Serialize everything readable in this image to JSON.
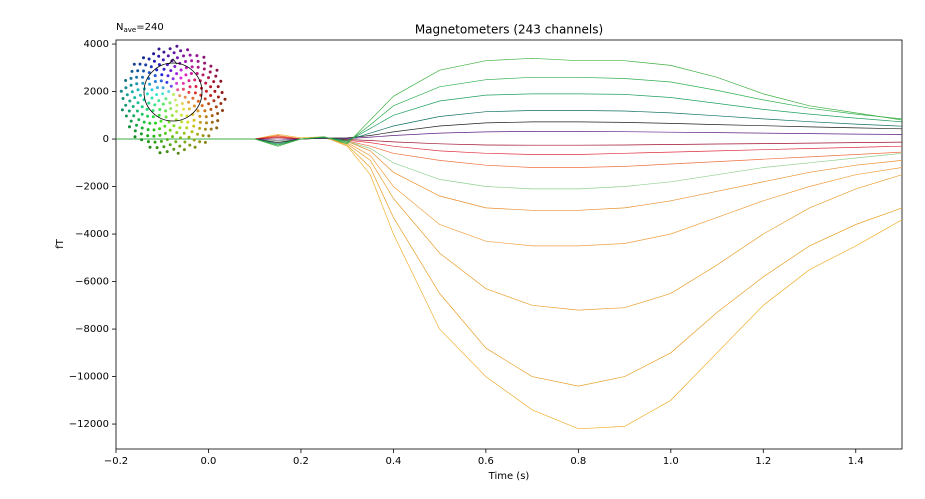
{
  "chart_data": {
    "type": "line",
    "title": "Magnetometers (243 channels)",
    "nave": {
      "symbol": "N",
      "subscript": "ave",
      "text": "=240"
    },
    "xlabel": "Time (s)",
    "ylabel": "fT",
    "xlim": [
      -0.2,
      1.5
    ],
    "ylim": [
      -13050,
      4170
    ],
    "xticks": [
      {
        "value": -0.2,
        "label": "−0.2"
      },
      {
        "value": 0,
        "label": "0.0"
      },
      0.2,
      0.4,
      0.6,
      0.8,
      {
        "value": 1,
        "label": "1.0"
      },
      1.2,
      1.4
    ],
    "yticks": [
      4000,
      2000,
      0,
      {
        "value": -2000,
        "label": "−2000"
      },
      {
        "value": -4000,
        "label": "−4000"
      },
      {
        "value": -6000,
        "label": "−6000"
      },
      {
        "value": -8000,
        "label": "−8000"
      },
      {
        "value": -10000,
        "label": "−10000"
      },
      {
        "value": -12000,
        "label": "−12000"
      }
    ],
    "x": [
      -0.2,
      -0.1,
      0,
      0.1,
      0.15,
      0.2,
      0.25,
      0.3,
      0.35,
      0.4,
      0.5,
      0.6,
      0.7,
      0.8,
      0.9,
      1.0,
      1.1,
      1.2,
      1.3,
      1.4,
      1.5
    ],
    "series": [
      {
        "color": "#f0b030",
        "values": [
          0,
          0,
          0,
          0,
          200,
          50,
          100,
          -300,
          -1500,
          -4000,
          -8000,
          -10000,
          -11400,
          -12200,
          -12100,
          -11000,
          -9000,
          -7000,
          -5500,
          -4500,
          -3400
        ]
      },
      {
        "color": "#e8a028",
        "values": [
          0,
          0,
          0,
          0,
          150,
          0,
          80,
          -250,
          -1200,
          -3300,
          -6500,
          -8800,
          -10000,
          -10400,
          -10000,
          -9000,
          -7300,
          -5800,
          -4500,
          -3600,
          -2900
        ]
      },
      {
        "color": "#e8a030",
        "values": [
          0,
          0,
          0,
          0,
          100,
          0,
          50,
          -200,
          -900,
          -2500,
          -4800,
          -6300,
          -7000,
          -7200,
          -7100,
          -6500,
          -5300,
          -4000,
          -2900,
          -2100,
          -1500
        ]
      },
      {
        "color": "#f0a040",
        "values": [
          0,
          0,
          0,
          0,
          100,
          0,
          50,
          -150,
          -700,
          -2000,
          -3600,
          -4300,
          -4500,
          -4500,
          -4400,
          -4000,
          -3300,
          -2600,
          -2000,
          -1500,
          -1200
        ]
      },
      {
        "color": "#e89030",
        "values": [
          0,
          0,
          0,
          0,
          100,
          0,
          50,
          -100,
          -500,
          -1400,
          -2400,
          -2900,
          -3000,
          -3000,
          -2900,
          -2600,
          -2200,
          -1800,
          -1400,
          -1100,
          -900
        ]
      },
      {
        "color": "#90d090",
        "values": [
          0,
          0,
          0,
          0,
          -100,
          0,
          50,
          -100,
          -400,
          -1000,
          -1700,
          -2000,
          -2100,
          -2100,
          -2000,
          -1800,
          -1500,
          -1200,
          -1000,
          -800,
          -600
        ]
      },
      {
        "color": "#f07040",
        "values": [
          0,
          0,
          0,
          0,
          150,
          0,
          60,
          -80,
          -300,
          -600,
          -900,
          -1100,
          -1200,
          -1200,
          -1150,
          -1050,
          -950,
          -850,
          -750,
          -650,
          -550
        ]
      },
      {
        "color": "#e03040",
        "values": [
          0,
          0,
          0,
          0,
          100,
          0,
          50,
          -50,
          -150,
          -300,
          -500,
          -600,
          -650,
          -650,
          -600,
          -550,
          -500,
          -450,
          -400,
          -350,
          -300
        ]
      },
      {
        "color": "#a01030",
        "values": [
          0,
          0,
          0,
          0,
          50,
          0,
          30,
          -20,
          -60,
          -120,
          -200,
          -250,
          -260,
          -260,
          -250,
          -230,
          -210,
          -190,
          -170,
          -150,
          -130
        ]
      },
      {
        "color": "#602080",
        "values": [
          0,
          0,
          0,
          0,
          -50,
          0,
          30,
          20,
          80,
          150,
          250,
          300,
          320,
          320,
          310,
          290,
          270,
          250,
          230,
          210,
          190
        ]
      },
      {
        "color": "#202020",
        "values": [
          0,
          0,
          0,
          0,
          -150,
          0,
          40,
          50,
          150,
          300,
          550,
          680,
          720,
          720,
          700,
          660,
          610,
          560,
          510,
          470,
          430
        ]
      },
      {
        "color": "#107060",
        "values": [
          0,
          0,
          0,
          0,
          -200,
          0,
          60,
          -50,
          250,
          550,
          950,
          1150,
          1200,
          1200,
          1180,
          1100,
          980,
          850,
          730,
          630,
          540
        ]
      },
      {
        "color": "#20a060",
        "values": [
          0,
          0,
          0,
          0,
          -250,
          0,
          80,
          -100,
          450,
          1000,
          1600,
          1850,
          1900,
          1900,
          1880,
          1750,
          1500,
          1250,
          1050,
          880,
          720
        ]
      },
      {
        "color": "#30b050",
        "values": [
          0,
          0,
          0,
          0,
          -250,
          0,
          90,
          -150,
          600,
          1400,
          2200,
          2500,
          2600,
          2600,
          2550,
          2400,
          2050,
          1650,
          1300,
          1050,
          850
        ]
      },
      {
        "color": "#40b040",
        "values": [
          0,
          0,
          0,
          0,
          -300,
          0,
          100,
          -200,
          800,
          1800,
          2900,
          3300,
          3400,
          3300,
          3300,
          3100,
          2600,
          1900,
          1400,
          1100,
          800
        ]
      }
    ]
  }
}
